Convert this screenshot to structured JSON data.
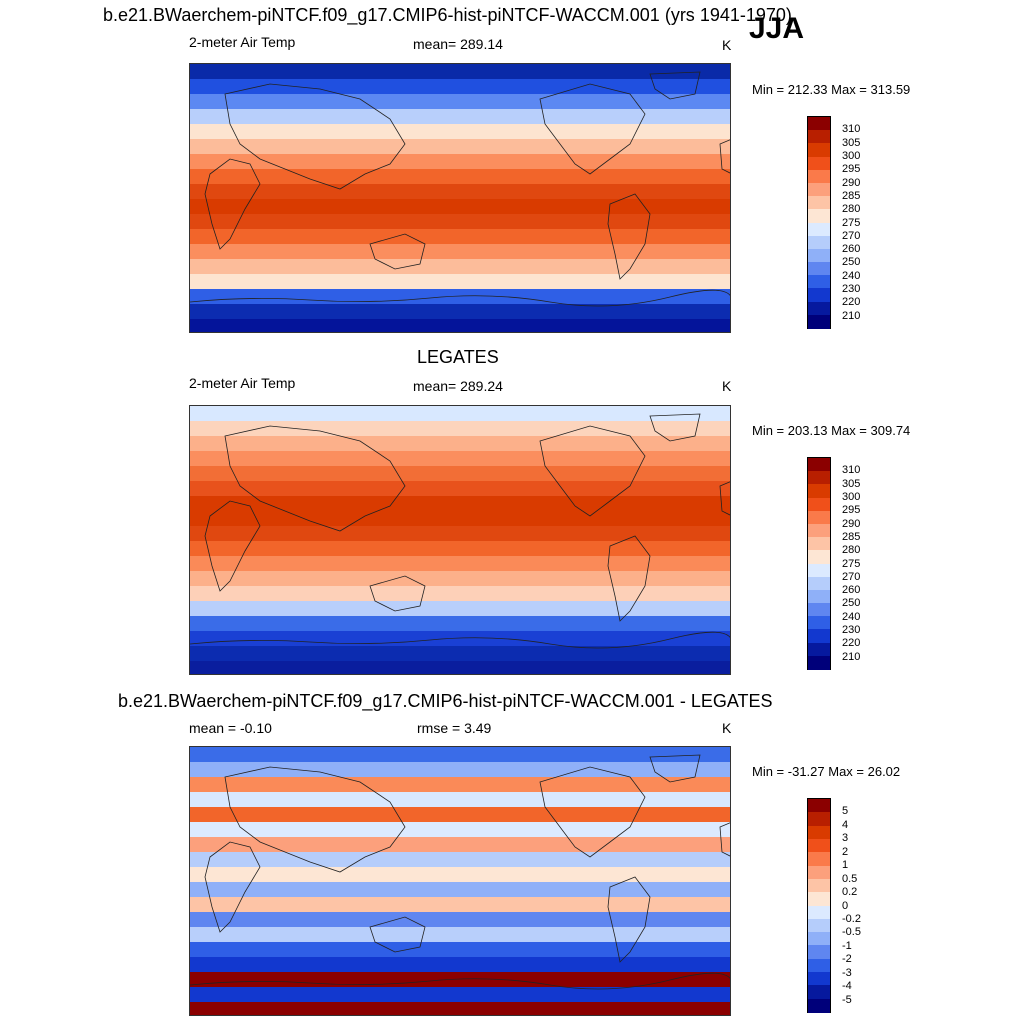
{
  "season": "JJA",
  "panels": [
    {
      "title": "b.e21.BWaerchem-piNTCF.f09_g17.CMIP6-hist-piNTCF-WACCM.001 (yrs 1941-1970)",
      "variable": "2-meter Air Temp",
      "stat": "mean= 289.14",
      "units": "K",
      "minmax": "Min = 212.33 Max = 313.59",
      "colorbar": {
        "labels": [
          "310",
          "305",
          "300",
          "295",
          "290",
          "285",
          "280",
          "275",
          "270",
          "260",
          "250",
          "240",
          "230",
          "220",
          "210"
        ],
        "colors": [
          "#8b0000",
          "#b81f00",
          "#d93b00",
          "#f0501a",
          "#fa7a4a",
          "#fca07c",
          "#fdc4a6",
          "#fde6d4",
          "#dceaff",
          "#b5cdfb",
          "#8fb0f8",
          "#5f86f0",
          "#2f5fe6",
          "#1238cf",
          "#06199e",
          "#00007a"
        ]
      },
      "bands": [
        "#0a2aa8",
        "#2050e0",
        "#5c88f2",
        "#b8cffb",
        "#fde4d0",
        "#fcbc9a",
        "#fb8e5e",
        "#f2652a",
        "#e04810",
        "#d93b00",
        "#e04810",
        "#f2652a",
        "#fb8e5e",
        "#fcbc9a",
        "#fde4d0",
        "#2f5fe6",
        "#0c2cb0",
        "#04149a"
      ]
    },
    {
      "title": "LEGATES",
      "variable": "2-meter Air Temp",
      "stat": "mean= 289.24",
      "units": "K",
      "minmax": "Min = 203.13 Max = 309.74",
      "colorbar": {
        "labels": [
          "310",
          "305",
          "300",
          "295",
          "290",
          "285",
          "280",
          "275",
          "270",
          "260",
          "250",
          "240",
          "230",
          "220",
          "210"
        ],
        "colors": [
          "#8b0000",
          "#b81f00",
          "#d93b00",
          "#f0501a",
          "#fa7a4a",
          "#fca07c",
          "#fdc4a6",
          "#fde6d4",
          "#dceaff",
          "#b5cdfb",
          "#8fb0f8",
          "#5f86f0",
          "#2f5fe6",
          "#1238cf",
          "#06199e",
          "#00007a"
        ]
      },
      "bands": [
        "#d8e8ff",
        "#fcd4bc",
        "#fcb08a",
        "#fb8e5e",
        "#f26e36",
        "#e8521c",
        "#d93b00",
        "#d93b00",
        "#e04810",
        "#f2652a",
        "#fa8a58",
        "#fcb08a",
        "#fdd0b8",
        "#b8cffb",
        "#3a6ce8",
        "#1a40d4",
        "#0c2cb0",
        "#0a1e9e"
      ]
    },
    {
      "title": "b.e21.BWaerchem-piNTCF.f09_g17.CMIP6-hist-piNTCF-WACCM.001 - LEGATES",
      "variable": "mean =  -0.10",
      "stat": "rmse =    3.49",
      "units": "K",
      "minmax": "Min = -31.27 Max =  26.02",
      "colorbar": {
        "labels": [
          "5",
          "4",
          "3",
          "2",
          "1",
          "0.5",
          "0.2",
          "0",
          "-0.2",
          "-0.5",
          "-1",
          "-2",
          "-3",
          "-4",
          "-5"
        ],
        "colors": [
          "#8b0000",
          "#b81f00",
          "#d93b00",
          "#f0501a",
          "#fa7a4a",
          "#fca07c",
          "#fdc4a6",
          "#fde6d4",
          "#dceaff",
          "#b5cdfb",
          "#8fb0f8",
          "#5f86f0",
          "#2f5fe6",
          "#1238cf",
          "#06199e",
          "#00007a"
        ]
      },
      "bands": [
        "#3a6ce8",
        "#8fb0f8",
        "#fa8a58",
        "#d8e8ff",
        "#f2652a",
        "#dceaff",
        "#fca07c",
        "#b5cdfb",
        "#fde6d4",
        "#8fb0f8",
        "#fdc4a6",
        "#5f86f0",
        "#b8cffb",
        "#2f5fe6",
        "#1238cf",
        "#8b0000",
        "#1238cf",
        "#8b0000"
      ]
    }
  ]
}
